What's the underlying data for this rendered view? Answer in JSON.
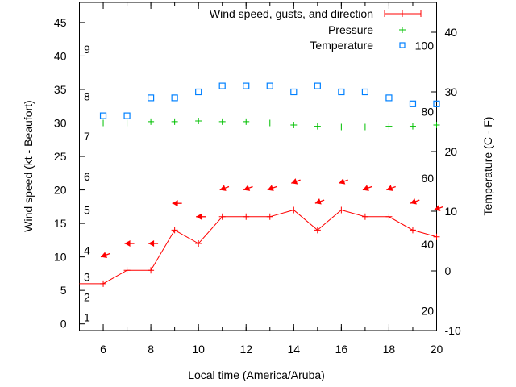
{
  "chart_data": {
    "type": "line",
    "xlabel": "Local time (America/Aruba)",
    "ylabel": "Wind speed (kt - Beaufort)",
    "y2label": "Temperature (C - F)",
    "xlim": [
      5,
      20
    ],
    "ylim": [
      -1,
      48
    ],
    "y2lim": [
      -10,
      45
    ],
    "xticks": [
      6,
      8,
      10,
      12,
      14,
      16,
      18,
      20
    ],
    "yticks": [
      0,
      5,
      10,
      15,
      20,
      25,
      30,
      35,
      40,
      45
    ],
    "y2ticks": [
      -10,
      0,
      10,
      20,
      30,
      40
    ],
    "beaufort_labels": [
      {
        "label": "1",
        "kt": 1
      },
      {
        "label": "2",
        "kt": 4
      },
      {
        "label": "3",
        "kt": 7
      },
      {
        "label": "4",
        "kt": 11
      },
      {
        "label": "5",
        "kt": 17
      },
      {
        "label": "6",
        "kt": 22
      },
      {
        "label": "7",
        "kt": 28
      },
      {
        "label": "8",
        "kt": 34
      },
      {
        "label": "9",
        "kt": 41
      }
    ],
    "fahrenheit_labels": [
      {
        "label": "20",
        "f": 20
      },
      {
        "label": "40",
        "f": 40
      },
      {
        "label": "60",
        "f": 60
      },
      {
        "label": "80",
        "f": 80
      },
      {
        "label": "100",
        "f": 100
      }
    ],
    "legend": {
      "position": "top-right",
      "entries": [
        "Wind speed, gusts, and direction",
        "Pressure",
        "Temperature"
      ]
    },
    "x": [
      6,
      7,
      8,
      9,
      10,
      11,
      12,
      13,
      14,
      15,
      16,
      17,
      18,
      19,
      20
    ],
    "series": [
      {
        "name": "Wind speed",
        "color": "#ff0000",
        "start": {
          "x": 5,
          "y": 6
        },
        "values": [
          6,
          8,
          8,
          14,
          12,
          16,
          16,
          16,
          17,
          14,
          17,
          16,
          16,
          14,
          13
        ]
      },
      {
        "name": "Gusts",
        "color": "#ff0000",
        "values": [
          10,
          12,
          12,
          18,
          16,
          20,
          20,
          20,
          21,
          18,
          21,
          20,
          20,
          18,
          17
        ],
        "direction_deg": [
          70,
          90,
          90,
          90,
          90,
          70,
          70,
          70,
          70,
          70,
          70,
          70,
          70,
          70,
          70
        ]
      },
      {
        "name": "Pressure",
        "color": "#00c000",
        "values": [
          30.0,
          30.0,
          30.2,
          30.2,
          30.3,
          30.2,
          30.2,
          30.0,
          29.7,
          29.5,
          29.4,
          29.4,
          29.5,
          29.5,
          29.7
        ]
      },
      {
        "name": "Temperature",
        "color": "#0080ff",
        "axis": "y2",
        "values": [
          26,
          26,
          29,
          29,
          30,
          31,
          31,
          31,
          30,
          31,
          30,
          30,
          29,
          28,
          28
        ]
      }
    ]
  }
}
